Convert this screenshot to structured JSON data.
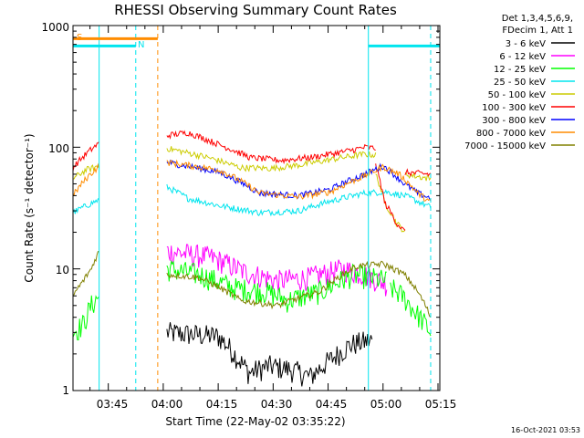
{
  "chart_data": {
    "type": "line",
    "title": "RHESSI Observing Summary Count Rates",
    "xlabel": "Start Time (22-May-02 03:35:22)",
    "ylabel": "Count Rate (s⁻¹ detector⁻¹)",
    "yscale": "log",
    "ylim": [
      1,
      1000
    ],
    "xlim": [
      "03:35:22",
      "05:15:30"
    ],
    "x_tick_labels": [
      "03:45",
      "04:00",
      "04:15",
      "04:30",
      "04:45",
      "05:00",
      "05:15"
    ],
    "y_tick_labels": [
      "1",
      "10",
      "100",
      "1000"
    ],
    "legend_header": [
      "Det 1,3,4,5,6,9,",
      "FDecim 1, Att 1"
    ],
    "timestamp": "16-Oct-2021 03:53",
    "grid": false,
    "legend_position": "right",
    "flag_labels": {
      "saa": "S",
      "night": "N"
    },
    "flags": {
      "saa": {
        "start": "03:35:22",
        "end": "03:58:30",
        "level": 780,
        "color": "#ff8c00"
      },
      "night_segments": [
        {
          "start": "03:35:22",
          "end": "03:52:30"
        },
        {
          "start": "04:56:00",
          "end": "05:15:30"
        }
      ],
      "night_level": 680,
      "night_color": "#00e5ee"
    },
    "vlines": [
      {
        "time": "03:42:30",
        "style": "solid",
        "color": "#00e5ee"
      },
      {
        "time": "03:52:30",
        "style": "dashed",
        "color": "#00e5ee"
      },
      {
        "time": "03:58:30",
        "style": "dashed",
        "color": "#ff8c00"
      },
      {
        "time": "04:56:00",
        "style": "solid",
        "color": "#00e5ee"
      },
      {
        "time": "05:13:00",
        "style": "dashed",
        "color": "#00e5ee"
      }
    ],
    "series": [
      {
        "name": "3 - 6 keV",
        "color": "#000000",
        "segments": [
          {
            "start": "03:35:22",
            "end": "03:42:00",
            "points": []
          },
          {
            "start": "04:01:00",
            "end": "04:57:00",
            "points": [
              [
                0,
                3
              ],
              [
                0.25,
                2.8
              ],
              [
                0.35,
                1.8
              ],
              [
                0.4,
                1.4
              ],
              [
                0.5,
                1.6
              ],
              [
                0.6,
                1.5
              ],
              [
                0.7,
                1.3
              ],
              [
                0.8,
                1.8
              ],
              [
                0.9,
                2.4
              ],
              [
                1,
                2.6
              ]
            ]
          }
        ]
      },
      {
        "name": "6 - 12 keV",
        "color": "#ff00ff",
        "segments": [
          {
            "start": "04:01:00",
            "end": "05:01:00",
            "points": [
              [
                0,
                14
              ],
              [
                0.2,
                12.5
              ],
              [
                0.35,
                9.5
              ],
              [
                0.5,
                8
              ],
              [
                0.65,
                8.5
              ],
              [
                0.8,
                10
              ],
              [
                0.9,
                9
              ],
              [
                1,
                7.5
              ]
            ]
          }
        ]
      },
      {
        "name": "12 - 25 keV",
        "color": "#00ff00",
        "segments": [
          {
            "start": "03:35:22",
            "end": "03:42:30",
            "points": [
              [
                0,
                3
              ],
              [
                0.4,
                3.5
              ],
              [
                0.7,
                5
              ],
              [
                1,
                6
              ]
            ]
          },
          {
            "start": "04:01:00",
            "end": "05:01:00",
            "points": [
              [
                0,
                10
              ],
              [
                0.15,
                9
              ],
              [
                0.3,
                7
              ],
              [
                0.45,
                6.5
              ],
              [
                0.55,
                5.5
              ],
              [
                0.7,
                6.5
              ],
              [
                0.85,
                9
              ],
              [
                1,
                8
              ]
            ]
          },
          {
            "start": "05:02:00",
            "end": "05:13:00",
            "points": [
              [
                0,
                7
              ],
              [
                0.3,
                6
              ],
              [
                0.6,
                4.5
              ],
              [
                1,
                3
              ]
            ]
          }
        ]
      },
      {
        "name": "25 - 50 keV",
        "color": "#00e5ee",
        "segments": [
          {
            "start": "03:35:22",
            "end": "03:42:30",
            "points": [
              [
                0,
                29
              ],
              [
                0.5,
                33
              ],
              [
                1,
                37
              ]
            ]
          },
          {
            "start": "04:01:00",
            "end": "05:13:00",
            "points": [
              [
                0,
                47
              ],
              [
                0.08,
                38
              ],
              [
                0.2,
                33
              ],
              [
                0.35,
                29
              ],
              [
                0.5,
                30
              ],
              [
                0.62,
                36
              ],
              [
                0.75,
                42
              ],
              [
                0.83,
                43
              ],
              [
                0.9,
                40
              ],
              [
                1,
                32
              ]
            ]
          }
        ]
      },
      {
        "name": "50 - 100 keV",
        "color": "#cccc00",
        "segments": [
          {
            "start": "03:35:22",
            "end": "03:42:30",
            "points": [
              [
                0,
                55
              ],
              [
                0.5,
                65
              ],
              [
                1,
                70
              ]
            ]
          },
          {
            "start": "04:01:00",
            "end": "04:58:00",
            "points": [
              [
                0,
                98
              ],
              [
                0.2,
                82
              ],
              [
                0.35,
                68
              ],
              [
                0.5,
                67
              ],
              [
                0.65,
                72
              ],
              [
                0.8,
                80
              ],
              [
                0.95,
                88
              ],
              [
                1,
                86
              ]
            ]
          },
          {
            "start": "04:58:00",
            "end": "05:06:00",
            "points": [
              [
                0,
                60
              ],
              [
                0.3,
                35
              ],
              [
                0.7,
                24
              ],
              [
                1,
                20
              ]
            ]
          },
          {
            "start": "05:06:00",
            "end": "05:13:00",
            "points": [
              [
                0,
                60
              ],
              [
                1,
                55
              ]
            ]
          }
        ]
      },
      {
        "name": "100 - 300 keV",
        "color": "#ff0000",
        "segments": [
          {
            "start": "03:35:22",
            "end": "03:42:30",
            "points": [
              [
                0,
                68
              ],
              [
                0.5,
                88
              ],
              [
                1,
                108
              ]
            ]
          },
          {
            "start": "04:01:00",
            "end": "04:58:00",
            "points": [
              [
                0,
                125
              ],
              [
                0.1,
                132
              ],
              [
                0.25,
                105
              ],
              [
                0.4,
                82
              ],
              [
                0.55,
                78
              ],
              [
                0.7,
                83
              ],
              [
                0.85,
                92
              ],
              [
                0.95,
                100
              ],
              [
                1,
                98
              ]
            ]
          },
          {
            "start": "04:58:00",
            "end": "05:06:00",
            "points": [
              [
                0,
                70
              ],
              [
                0.3,
                35
              ],
              [
                0.7,
                24
              ],
              [
                1,
                20
              ]
            ]
          },
          {
            "start": "05:06:00",
            "end": "05:13:00",
            "points": [
              [
                0,
                62
              ],
              [
                1,
                60
              ]
            ]
          }
        ]
      },
      {
        "name": "300 - 800 keV",
        "color": "#0000ff",
        "segments": [
          {
            "start": "04:01:00",
            "end": "05:13:00",
            "points": [
              [
                0,
                75
              ],
              [
                0.2,
                62
              ],
              [
                0.35,
                42
              ],
              [
                0.5,
                40
              ],
              [
                0.62,
                45
              ],
              [
                0.75,
                60
              ],
              [
                0.82,
                70
              ],
              [
                0.9,
                50
              ],
              [
                0.95,
                42
              ],
              [
                1,
                38
              ]
            ]
          }
        ]
      },
      {
        "name": "800 - 7000 keV",
        "color": "#ff8c00",
        "segments": [
          {
            "start": "03:35:22",
            "end": "03:42:30",
            "points": [
              [
                0,
                40
              ],
              [
                0.5,
                55
              ],
              [
                1,
                70
              ]
            ]
          },
          {
            "start": "04:01:00",
            "end": "05:13:00",
            "points": [
              [
                0,
                75
              ],
              [
                0.2,
                65
              ],
              [
                0.35,
                42
              ],
              [
                0.5,
                39
              ],
              [
                0.62,
                43
              ],
              [
                0.75,
                58
              ],
              [
                0.82,
                69
              ],
              [
                0.88,
                60
              ],
              [
                0.95,
                42
              ],
              [
                1,
                35
              ]
            ]
          }
        ]
      },
      {
        "name": "7000 - 15000 keV",
        "color": "#808000",
        "segments": [
          {
            "start": "03:35:22",
            "end": "03:42:30",
            "points": [
              [
                0,
                6
              ],
              [
                0.4,
                8
              ],
              [
                0.7,
                10
              ],
              [
                1,
                14
              ]
            ]
          },
          {
            "start": "04:01:00",
            "end": "05:13:00",
            "points": [
              [
                0,
                9
              ],
              [
                0.12,
                8.5
              ],
              [
                0.28,
                5.5
              ],
              [
                0.42,
                5
              ],
              [
                0.58,
                6.5
              ],
              [
                0.72,
                10.5
              ],
              [
                0.82,
                11
              ],
              [
                0.9,
                9
              ],
              [
                1,
                4
              ]
            ]
          }
        ]
      }
    ]
  }
}
